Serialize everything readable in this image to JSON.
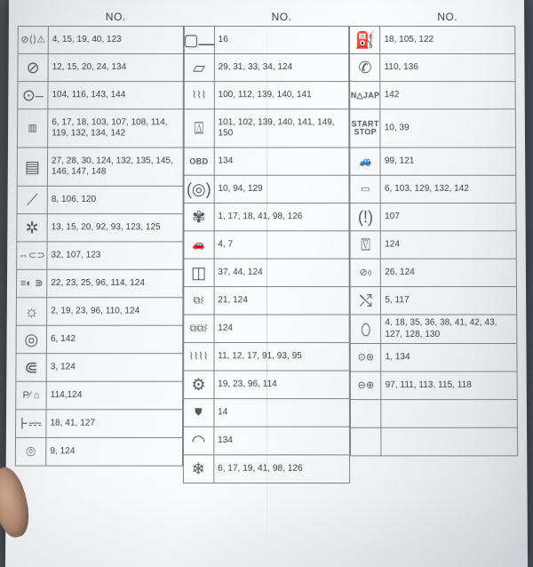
{
  "header": "NO.",
  "columns": [
    [
      {
        "icon": "<span class='sm'>⊘⟨⟩⚠</span>",
        "nums": "4, 15, 19, 40, 123",
        "tall": false
      },
      {
        "icon": "<span class='big'>⊘</span>",
        "nums": "12, 15, 20, 24, 134",
        "tall": false
      },
      {
        "icon": "<span class='big'>⊙⎯</span>",
        "nums": "104, 116, 143, 144",
        "tall": false
      },
      {
        "icon": "<span class='sm'>▥</span>",
        "nums": "6, 17, 18, 103, 107, 108, 114, 119, 132, 134, 142",
        "tall": true
      },
      {
        "icon": "<span class='big'>▤</span>",
        "nums": "27, 28, 30, 124, 132, 135, 145, 146, 147, 148",
        "tall": true
      },
      {
        "icon": "<span class='big'>⟋</span>",
        "nums": "8, 106, 120",
        "tall": false
      },
      {
        "icon": "<span class='big'>✲</span>",
        "nums": "13, 15, 20, 92, 93, 123, 125",
        "tall": false
      },
      {
        "icon": "<span class='sm'>⇔⊂⊃</span>",
        "nums": "32, 107, 123",
        "tall": false
      },
      {
        "icon": "<span class='sm'>≡◐ ⋑</span>",
        "nums": "22, 23, 25, 96, 114, 124",
        "tall": false
      },
      {
        "icon": "<span class='big'>☼</span>",
        "nums": "2, 19, 23, 96, 110, 124",
        "tall": false
      },
      {
        "icon": "<span class='big'>◎</span>",
        "nums": "6, 142",
        "tall": false
      },
      {
        "icon": "<span class='big'>⋐</span>",
        "nums": "3, 124",
        "tall": false
      },
      {
        "icon": "<span class='sm'>P⁄ ⌂</span>",
        "nums": "114,124",
        "tall": false
      },
      {
        "icon": "<span class='big'>⊦⎓</span>",
        "nums": "18, 41, 127",
        "tall": false
      },
      {
        "icon": "<span class='big'>⌾</span>",
        "nums": "9, 124",
        "tall": false
      }
    ],
    [
      {
        "icon": "<span class='big'>▢⎼</span>",
        "nums": "16",
        "tall": false
      },
      {
        "icon": "<span class='big'>▱</span>",
        "nums": "29, 31, 33, 34, 124",
        "tall": false
      },
      {
        "icon": "<span class='sm'>⌇⌇⌇</span>",
        "nums": "100, 112, 139, 140, 141",
        "tall": false
      },
      {
        "icon": "<span class='big'>⍍</span>",
        "nums": "101, 102, 139, 140, 141, 149, 150",
        "tall": true
      },
      {
        "icon": "<span class='txt'>OBD</span>",
        "nums": "134",
        "tall": false
      },
      {
        "icon": "<span class='big'>(◎)</span>",
        "nums": "10, 94, 129",
        "tall": false
      },
      {
        "icon": "<span class='big'>✾</span>",
        "nums": "1, 17, 18, 41, 98, 126",
        "tall": false
      },
      {
        "icon": "<span class='sm'>🚗</span>",
        "nums": "4, 7",
        "tall": false
      },
      {
        "icon": "<span class='big'>◫</span>",
        "nums": "37, 44, 124",
        "tall": false
      },
      {
        "icon": "<span class='sm'>⧉⌇</span>",
        "nums": "21, 124",
        "tall": false
      },
      {
        "icon": "<span class='sm'>⧉⧉⌇</span>",
        "nums": "124",
        "tall": false
      },
      {
        "icon": "<span class='sm'>⌇⌇⌇⌇</span>",
        "nums": "11, 12, 17, 91, 93, 95",
        "tall": false
      },
      {
        "icon": "<span class='big'>⚙</span>",
        "nums": "19, 23, 96, 114",
        "tall": false
      },
      {
        "icon": "<span class='sm'>⛊</span>",
        "nums": "14",
        "tall": false
      },
      {
        "icon": "<span class='big'>◠</span>",
        "nums": "134",
        "tall": false
      },
      {
        "icon": "<span class='big'>❄</span>",
        "nums": "6, 17, 19, 41, 98, 126",
        "tall": false
      }
    ],
    [
      {
        "icon": "<span class='big'>⛽</span>",
        "nums": "18, 105, 122",
        "tall": false
      },
      {
        "icon": "<span class='big'>✆</span>",
        "nums": "110, 136",
        "tall": false
      },
      {
        "icon": "<span class='txt'>N△JAP</span>",
        "nums": "142",
        "tall": false
      },
      {
        "icon": "<span class='txt'>START STOP</span>",
        "nums": "10, 39",
        "tall": true
      },
      {
        "icon": "<span class='sm'>🚙</span>",
        "nums": "99, 121",
        "tall": false
      },
      {
        "icon": "<span class='sm'>▭</span>",
        "nums": "6, 103, 129, 132, 142",
        "tall": false
      },
      {
        "icon": "<span class='big'>(!)</span>",
        "nums": "107",
        "tall": false
      },
      {
        "icon": "<span class='big'>⍔</span>",
        "nums": "124",
        "tall": false
      },
      {
        "icon": "<span class='sm'>⊘⬨</span>",
        "nums": "26, 124",
        "tall": false
      },
      {
        "icon": "<span class='big'>⤭</span>",
        "nums": "5, 117",
        "tall": false
      },
      {
        "icon": "<span class='big'>⬯</span>",
        "nums": "4, 18, 35, 36, 38, 41, 42, 43, 127, 128, 130",
        "tall": false
      },
      {
        "icon": "<span class='sm'>⊙⊚</span>",
        "nums": "1, 134",
        "tall": false
      },
      {
        "icon": "<span class='sm'>⊖⊕</span>",
        "nums": "97, 111, 113, 115, 118",
        "tall": false
      },
      {
        "icon": "",
        "nums": "",
        "tall": false,
        "empty": true
      },
      {
        "icon": "",
        "nums": "",
        "tall": false,
        "empty": true
      },
      {
        "icon": "",
        "nums": "",
        "tall": false,
        "noborder": true
      }
    ]
  ]
}
